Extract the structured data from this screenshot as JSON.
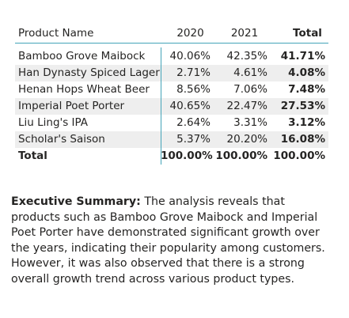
{
  "table": {
    "headers": {
      "name": "Product Name",
      "y2020": "2020",
      "y2021": "2021",
      "total": "Total"
    },
    "rows": [
      {
        "name": "Bamboo Grove Maibock",
        "y2020": "40.06%",
        "y2021": "42.35%",
        "total": "41.71%"
      },
      {
        "name": "Han Dynasty Spiced Lager",
        "y2020": "2.71%",
        "y2021": "4.61%",
        "total": "4.08%"
      },
      {
        "name": "Henan Hops Wheat Beer",
        "y2020": "8.56%",
        "y2021": "7.06%",
        "total": "7.48%"
      },
      {
        "name": "Imperial Poet Porter",
        "y2020": "40.65%",
        "y2021": "22.47%",
        "total": "27.53%"
      },
      {
        "name": "Liu Ling's IPA",
        "y2020": "2.64%",
        "y2021": "3.31%",
        "total": "3.12%"
      },
      {
        "name": "Scholar's Saison",
        "y2020": "5.37%",
        "y2021": "20.20%",
        "total": "16.08%"
      }
    ],
    "total_row": {
      "name": "Total",
      "y2020": "100.00%",
      "y2021": "100.00%",
      "total": "100.00%"
    },
    "colors": {
      "accent_line": "#44a4b8",
      "stripe": "#eeeeee"
    }
  },
  "summary": {
    "label": "Executive Summary:",
    "text": " The analysis reveals that products such as Bamboo Grove Maibock and Imperial Poet Porter have demonstrated significant growth over the years, indicating their popularity among customers. However, it was also observed that there is a strong overall growth trend across various product types."
  }
}
